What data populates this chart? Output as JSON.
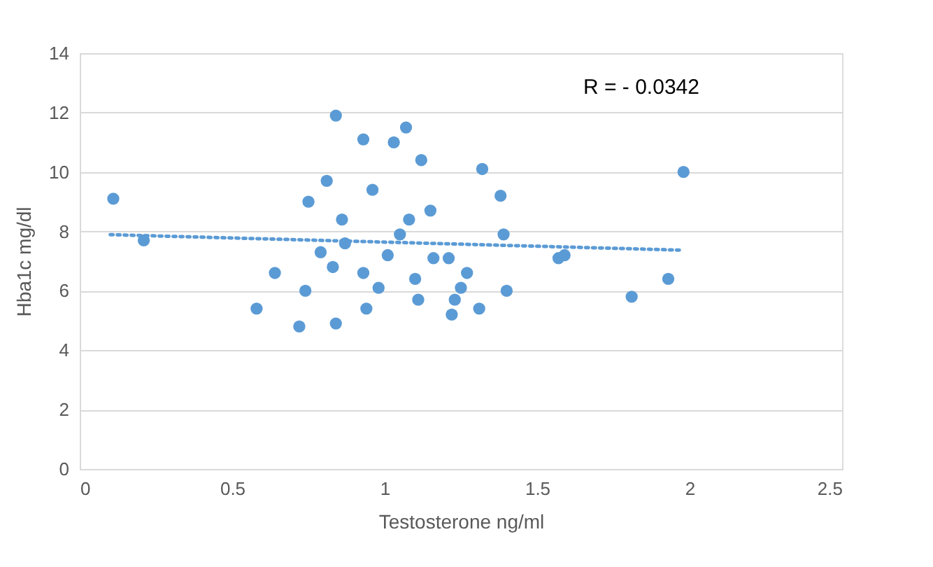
{
  "chart_data": {
    "type": "scatter",
    "xlabel": "Testosterone ng/ml",
    "ylabel": "Hba1c mg/dl",
    "annotations": [
      "R = - 0.0342"
    ],
    "xlim": [
      0,
      2.5
    ],
    "xticks": [
      0,
      0.5,
      1,
      1.5,
      2,
      2.5
    ],
    "ylim": [
      0,
      14
    ],
    "yticks": [
      0,
      2,
      4,
      6,
      8,
      10,
      12,
      14
    ],
    "grid": "y",
    "series": [
      {
        "color": "#5b9bd5",
        "marker": "circle",
        "x": [
          0.11,
          0.21,
          0.84,
          0.93,
          1.03,
          1.07,
          1.12,
          0.81,
          0.96,
          0.75,
          0.86,
          1.08,
          1.05,
          0.87,
          0.79,
          1.01,
          0.64,
          0.83,
          0.93,
          1.1,
          0.74,
          0.98,
          1.11,
          0.58,
          0.94,
          0.72,
          0.84,
          1.32,
          1.38,
          1.98,
          1.15,
          1.39,
          1.16,
          1.21,
          1.57,
          1.59,
          1.27,
          1.25,
          1.4,
          1.23,
          1.93,
          1.81,
          1.31,
          1.22
        ],
        "values": [
          9.1,
          7.7,
          11.9,
          11.1,
          11.0,
          11.5,
          10.4,
          9.7,
          9.4,
          9.0,
          8.4,
          8.4,
          7.9,
          7.6,
          7.3,
          7.2,
          6.6,
          6.8,
          6.6,
          6.4,
          6.0,
          6.1,
          5.7,
          5.4,
          5.4,
          4.8,
          4.9,
          10.1,
          9.2,
          10.0,
          8.7,
          7.9,
          7.1,
          7.1,
          7.1,
          7.2,
          6.6,
          6.1,
          6.0,
          5.7,
          6.4,
          5.8,
          5.4,
          5.2
        ]
      },
      {
        "type": "line",
        "color": "#5b9bd5",
        "line_style": "dotted",
        "x": [
          0.1,
          1.97
        ],
        "values": [
          7.89,
          7.37
        ]
      }
    ]
  }
}
